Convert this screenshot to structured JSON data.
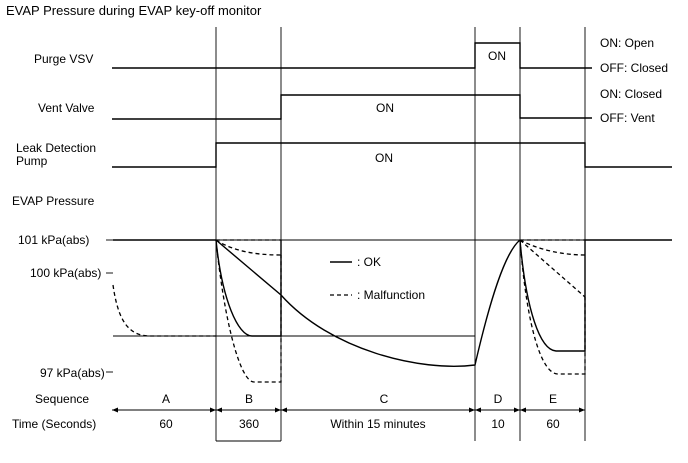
{
  "title": "EVAP Pressure during EVAP key-off monitor",
  "signals": {
    "purge_vsv": {
      "label": "Purge VSV",
      "on_text": "ON",
      "state_on": "ON: Open",
      "state_off": "OFF: Closed"
    },
    "vent_valve": {
      "label": "Vent Valve",
      "on_text": "ON",
      "state_on": "ON: Closed",
      "state_off": "OFF: Vent"
    },
    "leak_pump": {
      "label_line1": "Leak Detection",
      "label_line2": "Pump",
      "on_text": "ON"
    }
  },
  "pressure": {
    "label": "EVAP Pressure",
    "y_ticks": [
      "101 kPa(abs)",
      "100 kPa(abs)",
      "97 kPa(abs)"
    ]
  },
  "legend": {
    "ok": ": OK",
    "malfunction": ": Malfunction"
  },
  "sequence": {
    "label": "Sequence",
    "time_label": "Time (Seconds)",
    "phases": [
      {
        "name": "A",
        "time": "60"
      },
      {
        "name": "B",
        "time": "360"
      },
      {
        "name": "C",
        "time": "Within 15 minutes"
      },
      {
        "name": "D",
        "time": "10"
      },
      {
        "name": "E",
        "time": "60"
      }
    ]
  }
}
